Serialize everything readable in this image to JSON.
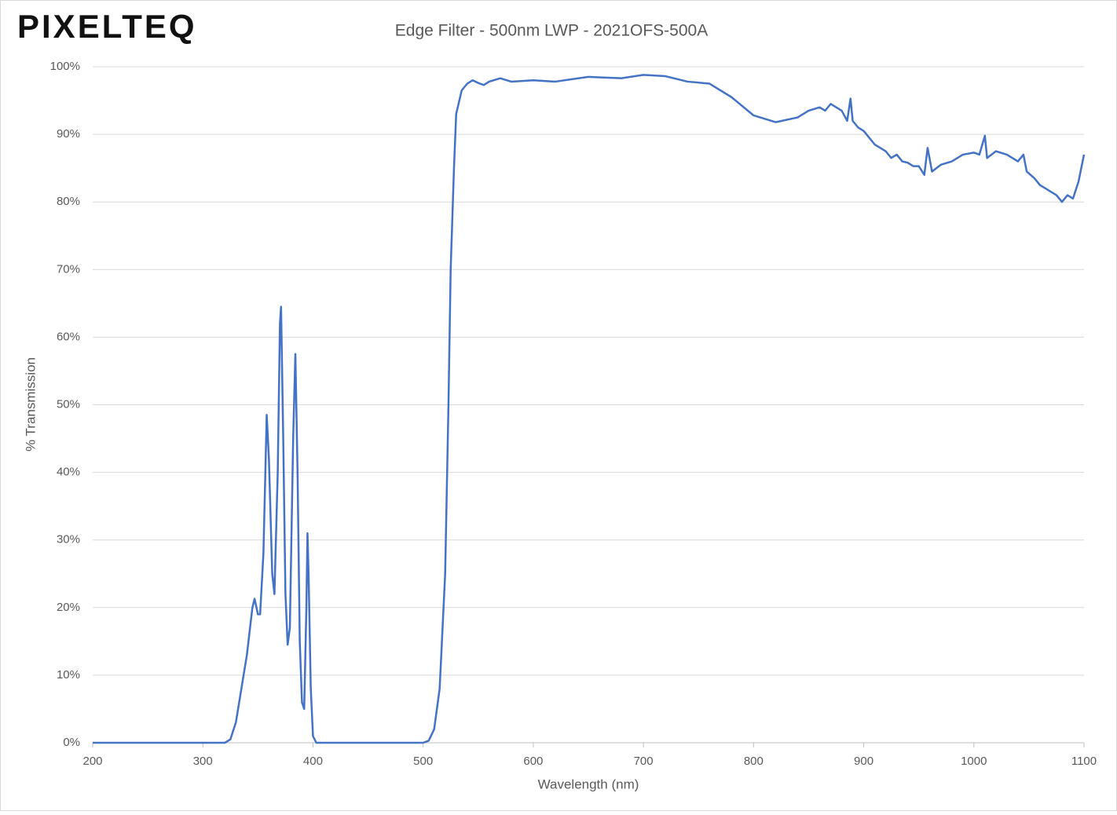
{
  "logo": "PIXELTEQ",
  "chart_data": {
    "type": "line",
    "title": "Edge Filter - 500nm LWP - 2021OFS-500A",
    "x_label": "Wavelength (nm)",
    "y_label": "% Transmission",
    "xlim": [
      200,
      1100
    ],
    "xticks": [
      200,
      300,
      400,
      500,
      600,
      700,
      800,
      900,
      1000,
      1100
    ],
    "ylim": [
      0,
      100
    ],
    "yticks": [
      {
        "value": 0,
        "label": "0%"
      },
      {
        "value": 10,
        "label": "10%"
      },
      {
        "value": 20,
        "label": "20%"
      },
      {
        "value": 30,
        "label": "30%"
      },
      {
        "value": 40,
        "label": "40%"
      },
      {
        "value": 50,
        "label": "50%"
      },
      {
        "value": 60,
        "label": "60%"
      },
      {
        "value": 70,
        "label": "70%"
      },
      {
        "value": 80,
        "label": "80%"
      },
      {
        "value": 90,
        "label": "90%"
      },
      {
        "value": 100,
        "label": "100%"
      }
    ],
    "grid": true,
    "color": "#4472c4",
    "x": [
      200,
      320,
      325,
      330,
      335,
      340,
      345,
      347,
      350,
      352,
      355,
      358,
      360,
      363,
      365,
      368,
      370,
      371,
      373,
      375,
      377,
      379,
      382,
      384,
      386,
      388,
      390,
      392,
      394,
      395,
      396,
      398,
      400,
      403,
      500,
      505,
      510,
      515,
      520,
      523,
      525,
      528,
      530,
      535,
      540,
      545,
      550,
      555,
      560,
      570,
      580,
      600,
      620,
      650,
      680,
      700,
      720,
      740,
      760,
      780,
      800,
      820,
      840,
      850,
      860,
      865,
      870,
      880,
      885,
      888,
      890,
      895,
      900,
      905,
      910,
      915,
      920,
      925,
      930,
      935,
      940,
      945,
      950,
      955,
      958,
      962,
      970,
      980,
      990,
      1000,
      1005,
      1010,
      1012,
      1020,
      1030,
      1040,
      1045,
      1048,
      1055,
      1060,
      1065,
      1070,
      1075,
      1080,
      1085,
      1090,
      1095,
      1100
    ],
    "values": [
      0,
      0,
      0.5,
      3,
      8,
      13,
      20,
      21.3,
      19,
      19,
      28,
      48.5,
      42,
      25,
      22,
      40,
      62,
      64.5,
      45,
      22,
      14.5,
      17,
      45,
      57.5,
      40,
      15,
      6,
      5,
      20,
      31,
      25,
      8,
      1,
      0,
      0,
      0.3,
      2,
      8,
      25,
      50,
      70,
      85,
      93,
      96.5,
      97.5,
      98,
      97.6,
      97.3,
      97.8,
      98.3,
      97.8,
      98,
      97.8,
      98.5,
      98.3,
      98.8,
      98.6,
      97.8,
      97.5,
      95.5,
      92.8,
      91.8,
      92.5,
      93.5,
      94,
      93.5,
      94.5,
      93.5,
      92,
      95.3,
      92,
      91,
      90.5,
      89.5,
      88.5,
      88,
      87.5,
      86.5,
      87,
      86,
      85.8,
      85.3,
      85.3,
      84,
      88,
      84.5,
      85.5,
      86,
      87,
      87.3,
      87,
      89.8,
      86.5,
      87.5,
      87,
      86,
      87,
      84.5,
      83.5,
      82.5,
      82,
      81.5,
      81,
      80,
      81,
      80.5,
      83,
      87
    ]
  }
}
